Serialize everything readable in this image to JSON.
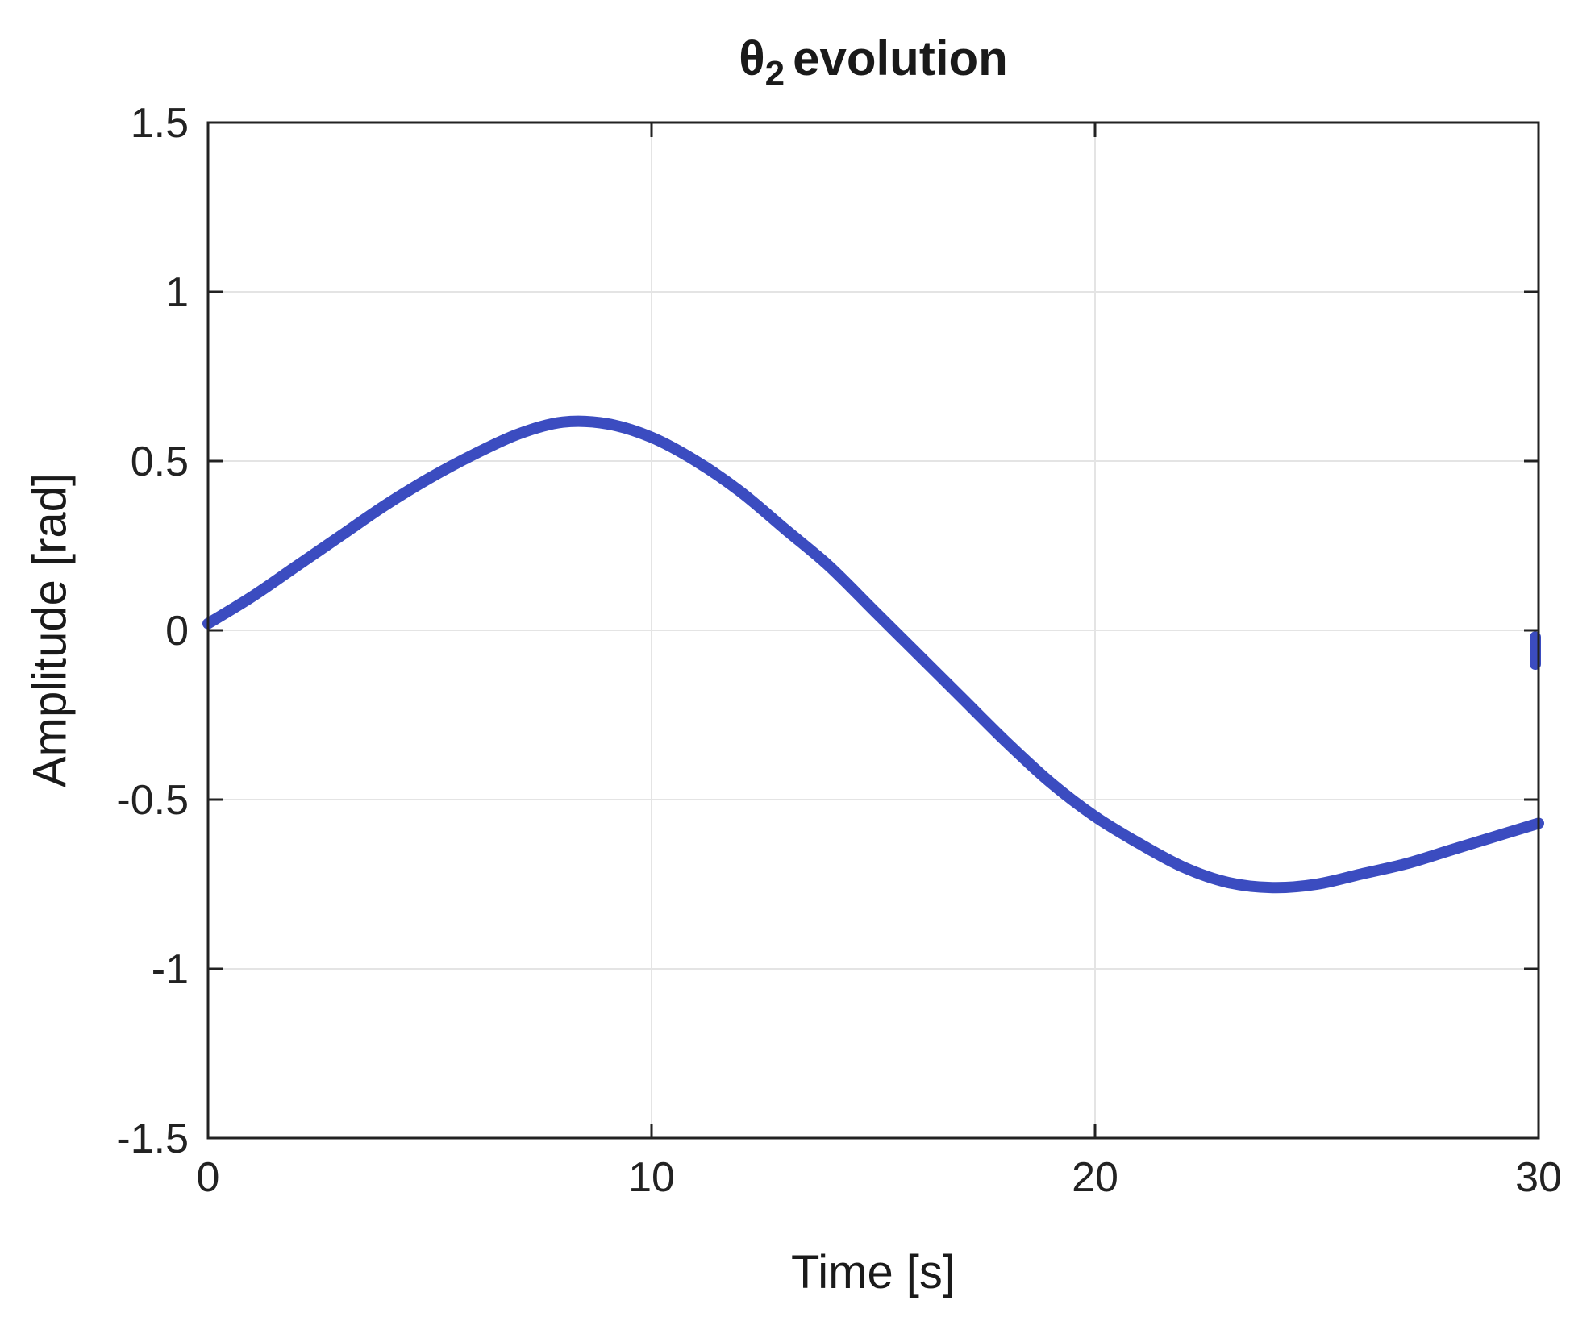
{
  "figure": {
    "title": {
      "main": "θ",
      "sub": "2",
      "rest": "evolution"
    },
    "xlabel": "Time [s]",
    "ylabel": "Amplitude [rad]"
  },
  "chart_data": {
    "type": "line",
    "title": "θ2 evolution",
    "xlabel": "Time [s]",
    "ylabel": "Amplitude [rad]",
    "xlim": [
      0,
      30
    ],
    "ylim": [
      -1.5,
      1.5
    ],
    "xticks": [
      0,
      10,
      20,
      30
    ],
    "yticks": [
      -1.5,
      -1,
      -0.5,
      0,
      0.5,
      1,
      1.5
    ],
    "grid": true,
    "legend": false,
    "line_color": "#3B4CC0",
    "line_width": 14,
    "grid_color": "#E4E4E4",
    "axis_color": "#222222",
    "series": [
      {
        "name": "theta2",
        "x": [
          0,
          1,
          2,
          3,
          4,
          5,
          6,
          7,
          8,
          9,
          10,
          11,
          12,
          13,
          14,
          15,
          16,
          17,
          18,
          19,
          20,
          21,
          22,
          23,
          24,
          25,
          26,
          27,
          28,
          29,
          30
        ],
        "y": [
          0.02,
          0.1,
          0.19,
          0.28,
          0.37,
          0.45,
          0.52,
          0.58,
          0.615,
          0.61,
          0.57,
          0.5,
          0.41,
          0.3,
          0.19,
          0.06,
          -0.07,
          -0.2,
          -0.33,
          -0.45,
          -0.55,
          -0.63,
          -0.7,
          -0.745,
          -0.76,
          -0.75,
          -0.72,
          -0.69,
          -0.65,
          -0.61,
          -0.57
        ]
      }
    ],
    "stray_mark": {
      "x": 30,
      "y_from": -0.02,
      "y_to": -0.1
    }
  }
}
